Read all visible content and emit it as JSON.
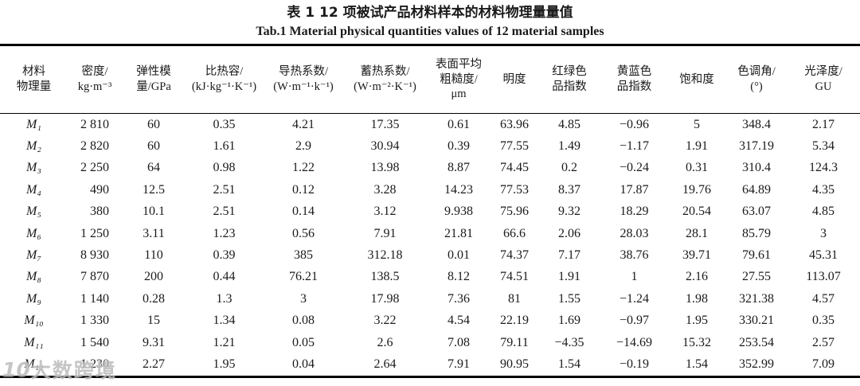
{
  "caption": {
    "zh": "表 1  12 项被试产品材料样本的材料物理量量值",
    "en": "Tab.1 Material physical quantities values of 12 material samples"
  },
  "table": {
    "headers": [
      "材料\n物理量",
      "密度/\nkg·m⁻³",
      "弹性模\n量/GPa",
      "比热容/\n(kJ·kg⁻¹·K⁻¹)",
      "导热系数/\n(W·m⁻¹·k⁻¹)",
      "蓄热系数/\n(W·m⁻²·K⁻¹)",
      "表面平均\n粗糙度/\nμm",
      "明度",
      "红绿色\n品指数",
      "黄蓝色\n品指数",
      "饱和度",
      "色调角/\n(°)",
      "光泽度/\nGU"
    ],
    "rows": [
      [
        "M₁",
        "2 810",
        "60",
        "0.35",
        "4.21",
        "17.35",
        "0.61",
        "63.96",
        "4.85",
        "−0.96",
        "5",
        "348.4",
        "2.17"
      ],
      [
        "M₂",
        "2 820",
        "60",
        "1.61",
        "2.9",
        "30.94",
        "0.39",
        "77.55",
        "1.49",
        "−1.17",
        "1.91",
        "317.19",
        "5.34"
      ],
      [
        "M₃",
        "2 250",
        "64",
        "0.98",
        "1.22",
        "13.98",
        "8.87",
        "74.45",
        "0.2",
        "−0.24",
        "0.31",
        "310.4",
        "124.3"
      ],
      [
        "M₄",
        "490",
        "12.5",
        "2.51",
        "0.12",
        "3.28",
        "14.23",
        "77.53",
        "8.37",
        "17.87",
        "19.76",
        "64.89",
        "4.35"
      ],
      [
        "M₅",
        "380",
        "10.1",
        "2.51",
        "0.14",
        "3.12",
        "9.938",
        "75.96",
        "9.32",
        "18.29",
        "20.54",
        "63.07",
        "4.85"
      ],
      [
        "M₆",
        "1 250",
        "3.11",
        "1.23",
        "0.56",
        "7.91",
        "21.81",
        "66.6",
        "2.06",
        "28.03",
        "28.1",
        "85.79",
        "3"
      ],
      [
        "M₇",
        "8 930",
        "110",
        "0.39",
        "385",
        "312.18",
        "0.01",
        "74.37",
        "7.17",
        "38.76",
        "39.71",
        "79.61",
        "45.31"
      ],
      [
        "M₈",
        "7 870",
        "200",
        "0.44",
        "76.21",
        "138.5",
        "8.12",
        "74.51",
        "1.91",
        "1",
        "2.16",
        "27.55",
        "113.07"
      ],
      [
        "M₉",
        "1 140",
        "0.28",
        "1.3",
        "3",
        "17.98",
        "7.36",
        "81",
        "1.55",
        "−1.24",
        "1.98",
        "321.38",
        "4.57"
      ],
      [
        "M₁₀",
        "1 330",
        "15",
        "1.34",
        "0.08",
        "3.22",
        "4.54",
        "22.19",
        "1.69",
        "−0.97",
        "1.95",
        "330.21",
        "0.35"
      ],
      [
        "M₁₁",
        "1 540",
        "9.31",
        "1.21",
        "0.05",
        "2.6",
        "7.08",
        "79.11",
        "−4.35",
        "−14.69",
        "15.32",
        "253.54",
        "2.57"
      ],
      [
        "M₁₂",
        "1 230",
        "2.27",
        "1.95",
        "0.04",
        "2.64",
        "7.91",
        "90.95",
        "1.54",
        "−0.19",
        "1.54",
        "352.99",
        "7.09"
      ]
    ]
  },
  "watermark": {
    "logo": "10",
    "text": "大数跨境"
  }
}
